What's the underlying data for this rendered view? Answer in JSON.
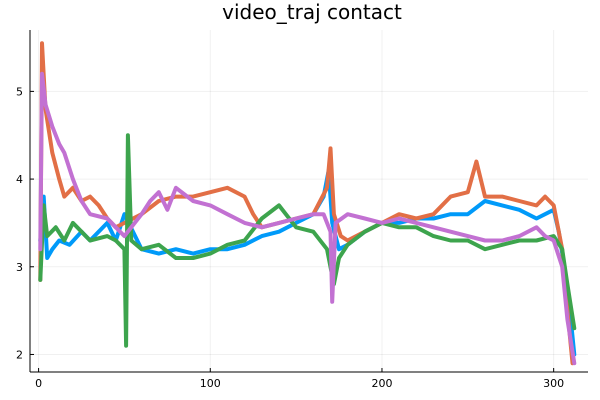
{
  "chart_data": {
    "type": "line",
    "title": "video_traj contact",
    "xlabel": "",
    "ylabel": "",
    "xlim": [
      -5,
      320
    ],
    "ylim": [
      1.8,
      5.7
    ],
    "xticks": [
      0,
      100,
      200,
      300
    ],
    "yticks": [
      2,
      3,
      4,
      5
    ],
    "grid": true,
    "legend": "none",
    "series": [
      {
        "color": "#009af9",
        "points": [
          [
            1,
            3.3
          ],
          [
            3,
            3.8
          ],
          [
            5,
            3.1
          ],
          [
            8,
            3.2
          ],
          [
            12,
            3.3
          ],
          [
            18,
            3.25
          ],
          [
            25,
            3.4
          ],
          [
            30,
            3.3
          ],
          [
            40,
            3.5
          ],
          [
            45,
            3.3
          ],
          [
            50,
            3.6
          ],
          [
            55,
            3.4
          ],
          [
            60,
            3.2
          ],
          [
            70,
            3.15
          ],
          [
            80,
            3.2
          ],
          [
            90,
            3.15
          ],
          [
            100,
            3.2
          ],
          [
            110,
            3.2
          ],
          [
            120,
            3.25
          ],
          [
            130,
            3.35
          ],
          [
            140,
            3.4
          ],
          [
            150,
            3.5
          ],
          [
            160,
            3.6
          ],
          [
            166,
            3.8
          ],
          [
            169,
            4.1
          ],
          [
            171,
            3.5
          ],
          [
            175,
            3.2
          ],
          [
            180,
            3.25
          ],
          [
            190,
            3.4
          ],
          [
            200,
            3.5
          ],
          [
            210,
            3.5
          ],
          [
            220,
            3.55
          ],
          [
            230,
            3.55
          ],
          [
            240,
            3.6
          ],
          [
            250,
            3.6
          ],
          [
            260,
            3.75
          ],
          [
            270,
            3.7
          ],
          [
            280,
            3.65
          ],
          [
            290,
            3.55
          ],
          [
            300,
            3.65
          ],
          [
            303,
            3.4
          ],
          [
            307,
            2.9
          ],
          [
            310,
            2.4
          ],
          [
            312,
            2.0
          ]
        ]
      },
      {
        "color": "#e26f46",
        "points": [
          [
            1,
            2.85
          ],
          [
            2,
            5.55
          ],
          [
            4,
            4.8
          ],
          [
            8,
            4.3
          ],
          [
            12,
            4.0
          ],
          [
            15,
            3.8
          ],
          [
            20,
            3.9
          ],
          [
            25,
            3.75
          ],
          [
            30,
            3.8
          ],
          [
            35,
            3.7
          ],
          [
            40,
            3.55
          ],
          [
            45,
            3.45
          ],
          [
            50,
            3.5
          ],
          [
            60,
            3.6
          ],
          [
            70,
            3.75
          ],
          [
            80,
            3.8
          ],
          [
            90,
            3.8
          ],
          [
            100,
            3.85
          ],
          [
            110,
            3.9
          ],
          [
            120,
            3.8
          ],
          [
            125,
            3.6
          ],
          [
            130,
            3.45
          ],
          [
            140,
            3.5
          ],
          [
            150,
            3.55
          ],
          [
            160,
            3.6
          ],
          [
            168,
            3.9
          ],
          [
            170,
            4.35
          ],
          [
            172,
            3.6
          ],
          [
            176,
            3.35
          ],
          [
            180,
            3.3
          ],
          [
            190,
            3.4
          ],
          [
            200,
            3.5
          ],
          [
            210,
            3.6
          ],
          [
            220,
            3.55
          ],
          [
            230,
            3.6
          ],
          [
            240,
            3.8
          ],
          [
            250,
            3.85
          ],
          [
            255,
            4.2
          ],
          [
            260,
            3.8
          ],
          [
            270,
            3.8
          ],
          [
            280,
            3.75
          ],
          [
            290,
            3.7
          ],
          [
            295,
            3.8
          ],
          [
            300,
            3.7
          ],
          [
            305,
            3.2
          ],
          [
            308,
            2.5
          ],
          [
            311,
            1.9
          ]
        ]
      },
      {
        "color": "#3da44d",
        "points": [
          [
            1,
            2.85
          ],
          [
            3,
            3.7
          ],
          [
            5,
            3.35
          ],
          [
            10,
            3.45
          ],
          [
            15,
            3.3
          ],
          [
            20,
            3.5
          ],
          [
            25,
            3.4
          ],
          [
            30,
            3.3
          ],
          [
            40,
            3.35
          ],
          [
            45,
            3.3
          ],
          [
            50,
            3.2
          ],
          [
            51,
            2.1
          ],
          [
            52,
            4.5
          ],
          [
            54,
            3.3
          ],
          [
            60,
            3.2
          ],
          [
            70,
            3.25
          ],
          [
            80,
            3.1
          ],
          [
            90,
            3.1
          ],
          [
            100,
            3.15
          ],
          [
            110,
            3.25
          ],
          [
            120,
            3.3
          ],
          [
            130,
            3.55
          ],
          [
            140,
            3.7
          ],
          [
            150,
            3.45
          ],
          [
            160,
            3.4
          ],
          [
            168,
            3.2
          ],
          [
            172,
            2.8
          ],
          [
            175,
            3.1
          ],
          [
            180,
            3.25
          ],
          [
            190,
            3.4
          ],
          [
            200,
            3.5
          ],
          [
            210,
            3.45
          ],
          [
            220,
            3.45
          ],
          [
            230,
            3.35
          ],
          [
            240,
            3.3
          ],
          [
            250,
            3.3
          ],
          [
            260,
            3.2
          ],
          [
            270,
            3.25
          ],
          [
            280,
            3.3
          ],
          [
            290,
            3.3
          ],
          [
            300,
            3.35
          ],
          [
            305,
            3.2
          ],
          [
            308,
            2.8
          ],
          [
            312,
            2.3
          ]
        ]
      },
      {
        "color": "#c271d2",
        "points": [
          [
            1,
            3.2
          ],
          [
            2,
            5.2
          ],
          [
            4,
            4.85
          ],
          [
            8,
            4.6
          ],
          [
            12,
            4.4
          ],
          [
            15,
            4.3
          ],
          [
            20,
            4.0
          ],
          [
            25,
            3.75
          ],
          [
            30,
            3.6
          ],
          [
            40,
            3.55
          ],
          [
            45,
            3.45
          ],
          [
            50,
            3.35
          ],
          [
            60,
            3.6
          ],
          [
            65,
            3.75
          ],
          [
            70,
            3.85
          ],
          [
            75,
            3.65
          ],
          [
            80,
            3.9
          ],
          [
            90,
            3.75
          ],
          [
            100,
            3.7
          ],
          [
            110,
            3.6
          ],
          [
            120,
            3.5
          ],
          [
            130,
            3.45
          ],
          [
            140,
            3.5
          ],
          [
            150,
            3.55
          ],
          [
            160,
            3.6
          ],
          [
            166,
            3.6
          ],
          [
            170,
            3.4
          ],
          [
            171,
            2.6
          ],
          [
            173,
            3.5
          ],
          [
            180,
            3.6
          ],
          [
            190,
            3.55
          ],
          [
            200,
            3.5
          ],
          [
            210,
            3.55
          ],
          [
            220,
            3.5
          ],
          [
            230,
            3.45
          ],
          [
            240,
            3.4
          ],
          [
            250,
            3.35
          ],
          [
            260,
            3.3
          ],
          [
            270,
            3.3
          ],
          [
            280,
            3.35
          ],
          [
            290,
            3.45
          ],
          [
            295,
            3.35
          ],
          [
            300,
            3.3
          ],
          [
            305,
            3.0
          ],
          [
            308,
            2.4
          ],
          [
            312,
            1.9
          ]
        ]
      }
    ]
  }
}
